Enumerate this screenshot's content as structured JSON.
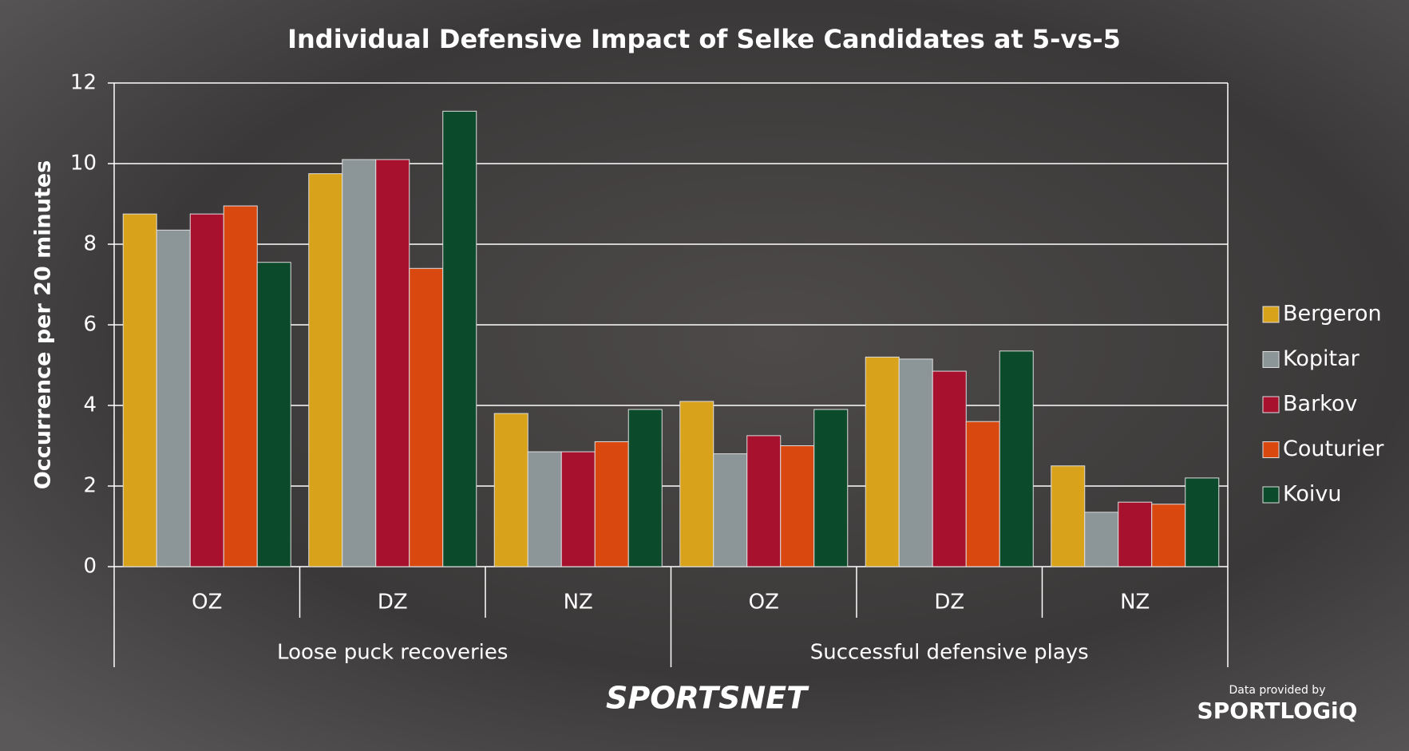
{
  "chart_data": {
    "type": "bar",
    "title": "Individual Defensive Impact of Selke Candidates at 5-vs-5",
    "y_label": "Occurrence per 20 minutes",
    "categories": [
      "OZ",
      "DZ",
      "NZ",
      "OZ",
      "DZ",
      "NZ"
    ],
    "group_labels": [
      "Loose puck recoveries",
      "Successful defensive plays"
    ],
    "series": [
      {
        "name": "Bergeron",
        "color": "#d9a21b",
        "values": [
          8.75,
          9.75,
          3.8,
          4.1,
          5.2,
          2.5
        ]
      },
      {
        "name": "Kopitar",
        "color": "#8c9598",
        "values": [
          8.35,
          10.1,
          2.85,
          2.8,
          5.15,
          1.35
        ]
      },
      {
        "name": "Barkov",
        "color": "#a8112e",
        "values": [
          8.75,
          10.1,
          2.85,
          3.25,
          4.85,
          1.6
        ]
      },
      {
        "name": "Couturier",
        "color": "#d9480f",
        "values": [
          8.95,
          7.4,
          3.1,
          3.0,
          3.6,
          1.55
        ]
      },
      {
        "name": "Koivu",
        "color": "#0b4a2a",
        "values": [
          7.55,
          11.3,
          3.9,
          3.9,
          5.35,
          2.2
        ]
      }
    ],
    "ylim": [
      0,
      12
    ],
    "yticks": [
      0,
      2,
      4,
      6,
      8,
      10,
      12
    ],
    "grid": true,
    "legend": "right"
  },
  "branding": {
    "logo": "SPORTSNET",
    "credit": "Data provided by",
    "credit_logo": "SPORTLOGiQ"
  }
}
